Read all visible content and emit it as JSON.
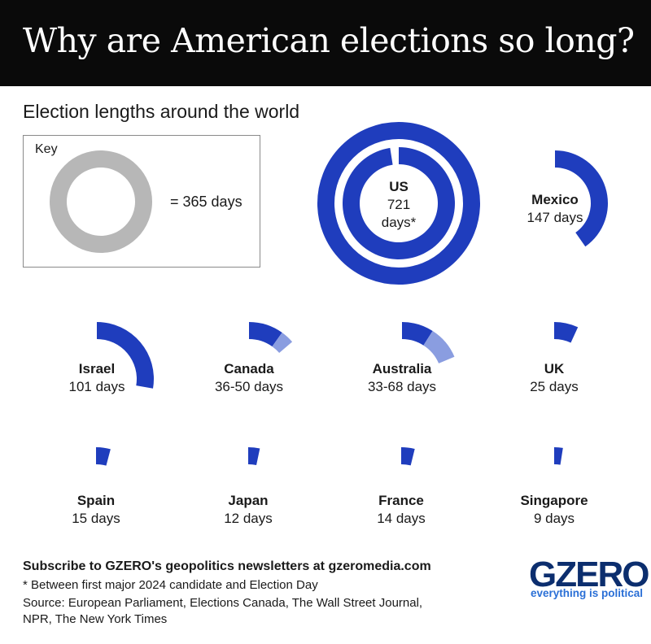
{
  "header": {
    "title": "Why are American elections so long?"
  },
  "subtitle": "Election lengths around the world",
  "key": {
    "label": "Key",
    "equals": "= 365 days",
    "days": 365
  },
  "colors": {
    "primary": "#1f3dbd",
    "range": "#8a9de0",
    "key_ring": "#b7b7b7",
    "header_bg": "#0a0a0a",
    "logo": "#0c2e6e",
    "tagline": "#2a6fd6"
  },
  "chart_data": {
    "type": "radial-bar",
    "title": "Election lengths around the world",
    "unit": "days",
    "full_circle_days": 365,
    "countries": [
      {
        "name": "US",
        "value_label": "721 days*",
        "min_days": 721,
        "max_days": 721
      },
      {
        "name": "Mexico",
        "value_label": "147 days",
        "min_days": 147,
        "max_days": 147
      },
      {
        "name": "Israel",
        "value_label": "101 days",
        "min_days": 101,
        "max_days": 101
      },
      {
        "name": "Canada",
        "value_label": "36-50 days",
        "min_days": 36,
        "max_days": 50
      },
      {
        "name": "Australia",
        "value_label": "33-68 days",
        "min_days": 33,
        "max_days": 68
      },
      {
        "name": "UK",
        "value_label": "25 days",
        "min_days": 25,
        "max_days": 25
      },
      {
        "name": "Spain",
        "value_label": "15 days",
        "min_days": 15,
        "max_days": 15
      },
      {
        "name": "Japan",
        "value_label": "12 days",
        "min_days": 12,
        "max_days": 12
      },
      {
        "name": "France",
        "value_label": "14 days",
        "min_days": 14,
        "max_days": 14
      },
      {
        "name": "Singapore",
        "value_label": "9 days",
        "min_days": 9,
        "max_days": 9
      }
    ]
  },
  "footer": {
    "subscribe": "Subscribe to GZERO's geopolitics newsletters at gzeromedia.com",
    "note": "* Between first major 2024 candidate and Election Day",
    "source_1": "Source: European Parliament, Elections Canada, The Wall Street Journal,",
    "source_2": "NPR, The New York Times"
  },
  "logo": {
    "text": "GZERO",
    "tagline": "everything is political"
  }
}
